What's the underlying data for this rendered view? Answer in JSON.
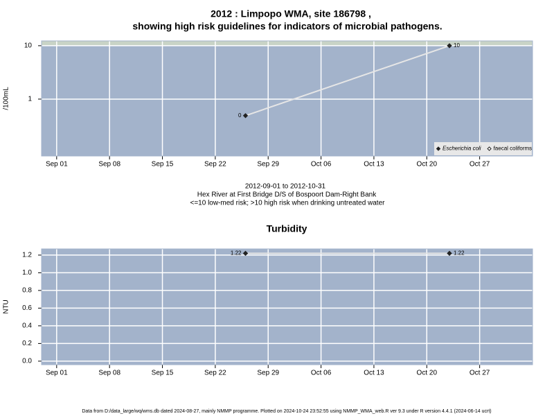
{
  "title": [
    "2012 : Limpopo WMA, site 186798 ,",
    "showing high risk guidelines for indicators of microbial pathogens."
  ],
  "notes": [
    "2012-09-01 to 2012-10-31",
    "Hex River at First Bridge D/S of Bospoort Dam-Right Bank",
    "<=10 low-med risk; >10 high risk when drinking untreated water"
  ],
  "footer": "Data from D:/data_large/wq/wms.db dated 2024-08-27, mainly NMMP programme. Plotted on 2024-10-24 23:52:55 using NMMP_WMA_web.R ver 9.3 under R version 4.4.1 (2024-06-14 ucrt)",
  "chart_data": [
    {
      "type": "line",
      "ylabel": "/100mL",
      "log_y": true,
      "grid": true,
      "highlight_above": 10,
      "legend": "lower right",
      "xlim": [
        "2012-08-30",
        "2012-11-03"
      ],
      "ylim": [
        0.086,
        12.3
      ],
      "yticks": [
        1,
        10
      ],
      "xticks": [
        {
          "value": "2012-09-01",
          "label": "Sep 01"
        },
        {
          "value": "2012-09-08",
          "label": "Sep 08"
        },
        {
          "value": "2012-09-15",
          "label": "Sep 15"
        },
        {
          "value": "2012-09-22",
          "label": "Sep 22"
        },
        {
          "value": "2012-09-29",
          "label": "Sep 29"
        },
        {
          "value": "2012-10-06",
          "label": "Oct 06"
        },
        {
          "value": "2012-10-13",
          "label": "Oct 13"
        },
        {
          "value": "2012-10-20",
          "label": "Oct 20"
        },
        {
          "value": "2012-10-27",
          "label": "Oct 27"
        }
      ],
      "x": [
        "2012-09-26",
        "2012-10-23"
      ],
      "series": [
        {
          "name": "Escherichia coli",
          "color": "#222222",
          "marker": "filled",
          "values": [
            0.49,
            10
          ],
          "value_labels": [
            "0",
            "10"
          ]
        },
        {
          "name": "faecal coliforms",
          "color": "#222222",
          "marker": "open",
          "values": [
            null,
            null
          ]
        }
      ]
    },
    {
      "type": "line",
      "title": "Turbidity",
      "ylabel": "NTU",
      "log_y": false,
      "grid": true,
      "xlim": [
        "2012-08-30",
        "2012-11-03"
      ],
      "ylim": [
        -0.04,
        1.27
      ],
      "yticks": [
        {
          "value": 0,
          "label": "0.0"
        },
        0.2,
        0.4,
        0.6,
        0.8,
        {
          "value": 1,
          "label": "1.0"
        },
        1.2
      ],
      "xticks": [
        {
          "value": "2012-09-01",
          "label": "Sep 01"
        },
        {
          "value": "2012-09-08",
          "label": "Sep 08"
        },
        {
          "value": "2012-09-15",
          "label": "Sep 15"
        },
        {
          "value": "2012-09-22",
          "label": "Sep 22"
        },
        {
          "value": "2012-09-29",
          "label": "Sep 29"
        },
        {
          "value": "2012-10-06",
          "label": "Oct 06"
        },
        {
          "value": "2012-10-13",
          "label": "Oct 13"
        },
        {
          "value": "2012-10-20",
          "label": "Oct 20"
        },
        {
          "value": "2012-10-27",
          "label": "Oct 27"
        }
      ],
      "x": [
        "2012-09-26",
        "2012-10-23"
      ],
      "series": [
        {
          "name": "Turbidity",
          "color": "#222222",
          "marker": "filled",
          "values": [
            1.22,
            1.22
          ]
        }
      ]
    }
  ]
}
